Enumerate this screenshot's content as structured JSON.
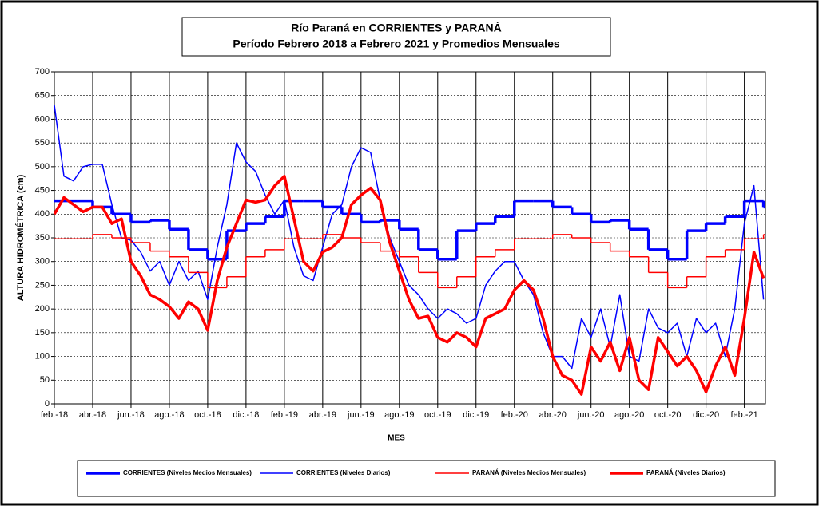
{
  "chart_data": {
    "type": "line",
    "title": "Río Paraná en CORRIENTES y PARANÁ",
    "subtitle": "Período Febrero 2018 a Febrero 2021 y Promedios Mensuales",
    "xlabel": "MES",
    "ylabel": "ALTURA HIDROMÉTRICA (cm)",
    "xlim": [
      0,
      37.1
    ],
    "ylim": [
      0,
      700
    ],
    "yticks": [
      0,
      50,
      100,
      150,
      200,
      250,
      300,
      350,
      400,
      450,
      500,
      550,
      600,
      650,
      700
    ],
    "xticks": [
      {
        "value": 0,
        "label": "feb.-18"
      },
      {
        "value": 2,
        "label": "abr.-18"
      },
      {
        "value": 4,
        "label": "jun.-18"
      },
      {
        "value": 6,
        "label": "ago.-18"
      },
      {
        "value": 8,
        "label": "oct.-18"
      },
      {
        "value": 10,
        "label": "dic.-18"
      },
      {
        "value": 12,
        "label": "feb.-19"
      },
      {
        "value": 14,
        "label": "abr.-19"
      },
      {
        "value": 16,
        "label": "jun.-19"
      },
      {
        "value": 18,
        "label": "ago.-19"
      },
      {
        "value": 20,
        "label": "oct.-19"
      },
      {
        "value": 22,
        "label": "dic.-19"
      },
      {
        "value": 24,
        "label": "feb.-20"
      },
      {
        "value": 26,
        "label": "abr.-20"
      },
      {
        "value": 28,
        "label": "jun.-20"
      },
      {
        "value": 30,
        "label": "ago.-20"
      },
      {
        "value": 32,
        "label": "oct.-20"
      },
      {
        "value": 34,
        "label": "dic.-20"
      },
      {
        "value": 36,
        "label": "feb.-21"
      }
    ],
    "grid": true,
    "series": [
      {
        "name": "CORRIENTES (Niveles Medios Mensuales)",
        "color": "#0000ff",
        "width": 3.5,
        "style": "step",
        "x": [
          0,
          1,
          2,
          3,
          4,
          5,
          6,
          7,
          8,
          9,
          10,
          11,
          12,
          13,
          14,
          15,
          16,
          17,
          18,
          19,
          20,
          21,
          22,
          23,
          24,
          25,
          26,
          27,
          28,
          29,
          30,
          31,
          32,
          33,
          34,
          35,
          36,
          37
        ],
        "values": [
          428,
          428,
          415,
          400,
          383,
          387,
          368,
          325,
          305,
          365,
          380,
          395,
          428,
          428,
          415,
          400,
          383,
          387,
          368,
          325,
          305,
          365,
          380,
          395,
          428,
          428,
          415,
          400,
          383,
          387,
          368,
          325,
          305,
          365,
          380,
          395,
          428,
          415
        ]
      },
      {
        "name": "CORRIENTES (Niveles Diarios)",
        "color": "#0000ff",
        "width": 1.5,
        "style": "line",
        "x": [
          0,
          0.5,
          1,
          1.5,
          2,
          2.5,
          3,
          3.5,
          4,
          4.5,
          5,
          5.5,
          6,
          6.5,
          7,
          7.5,
          8,
          8.5,
          9,
          9.5,
          10,
          10.5,
          11,
          11.5,
          12,
          12.5,
          13,
          13.5,
          14,
          14.5,
          15,
          15.5,
          16,
          16.5,
          17,
          17.5,
          18,
          18.5,
          19,
          19.5,
          20,
          20.5,
          21,
          21.5,
          22,
          22.5,
          23,
          23.5,
          24,
          24.5,
          25,
          25.5,
          26,
          26.5,
          27,
          27.5,
          28,
          28.5,
          29,
          29.5,
          30,
          30.5,
          31,
          31.5,
          32,
          32.5,
          33,
          33.5,
          34,
          34.5,
          35,
          35.5,
          36,
          36.5,
          37
        ],
        "values": [
          630,
          480,
          470,
          500,
          505,
          505,
          420,
          350,
          345,
          320,
          280,
          300,
          250,
          300,
          260,
          280,
          220,
          330,
          420,
          550,
          510,
          490,
          440,
          400,
          430,
          330,
          270,
          260,
          330,
          400,
          420,
          500,
          540,
          530,
          430,
          350,
          300,
          250,
          230,
          200,
          180,
          200,
          190,
          170,
          180,
          250,
          280,
          300,
          300,
          260,
          230,
          150,
          100,
          100,
          75,
          180,
          140,
          200,
          120,
          230,
          100,
          90,
          200,
          160,
          150,
          170,
          100,
          180,
          150,
          170,
          100,
          200,
          380,
          460,
          220
        ]
      },
      {
        "name": "PARANÁ (Niveles Medios Mensuales)",
        "color": "#ff0000",
        "width": 1.5,
        "style": "step",
        "x": [
          0,
          1,
          2,
          3,
          4,
          5,
          6,
          7,
          8,
          9,
          10,
          11,
          12,
          13,
          14,
          15,
          16,
          17,
          18,
          19,
          20,
          21,
          22,
          23,
          24,
          25,
          26,
          27,
          28,
          29,
          30,
          31,
          32,
          33,
          34,
          35,
          36,
          37
        ],
        "values": [
          348,
          348,
          357,
          350,
          340,
          322,
          310,
          277,
          245,
          268,
          310,
          325,
          348,
          348,
          357,
          350,
          340,
          322,
          310,
          277,
          245,
          268,
          310,
          325,
          348,
          348,
          357,
          350,
          340,
          322,
          310,
          277,
          245,
          268,
          310,
          325,
          348,
          357
        ]
      },
      {
        "name": "PARANÁ (Niveles Diarios)",
        "color": "#ff0000",
        "width": 3.5,
        "style": "line",
        "x": [
          0,
          0.5,
          1,
          1.5,
          2,
          2.5,
          3,
          3.5,
          4,
          4.5,
          5,
          5.5,
          6,
          6.5,
          7,
          7.5,
          8,
          8.5,
          9,
          9.5,
          10,
          10.5,
          11,
          11.5,
          12,
          12.5,
          13,
          13.5,
          14,
          14.5,
          15,
          15.5,
          16,
          16.5,
          17,
          17.5,
          18,
          18.5,
          19,
          19.5,
          20,
          20.5,
          21,
          21.5,
          22,
          22.5,
          23,
          23.5,
          24,
          24.5,
          25,
          25.5,
          26,
          26.5,
          27,
          27.5,
          28,
          28.5,
          29,
          29.5,
          30,
          30.5,
          31,
          31.5,
          32,
          32.5,
          33,
          33.5,
          34,
          34.5,
          35,
          35.5,
          36,
          36.5,
          37
        ],
        "values": [
          400,
          435,
          420,
          405,
          415,
          415,
          380,
          390,
          300,
          270,
          230,
          220,
          205,
          180,
          215,
          200,
          155,
          260,
          330,
          380,
          430,
          425,
          430,
          460,
          480,
          390,
          300,
          280,
          320,
          330,
          350,
          420,
          440,
          455,
          430,
          340,
          280,
          220,
          180,
          185,
          140,
          130,
          150,
          140,
          120,
          180,
          190,
          200,
          240,
          260,
          240,
          180,
          100,
          60,
          50,
          20,
          120,
          90,
          130,
          70,
          140,
          50,
          30,
          140,
          110,
          80,
          100,
          70,
          25,
          80,
          120,
          60,
          180,
          320,
          265
        ]
      }
    ]
  }
}
